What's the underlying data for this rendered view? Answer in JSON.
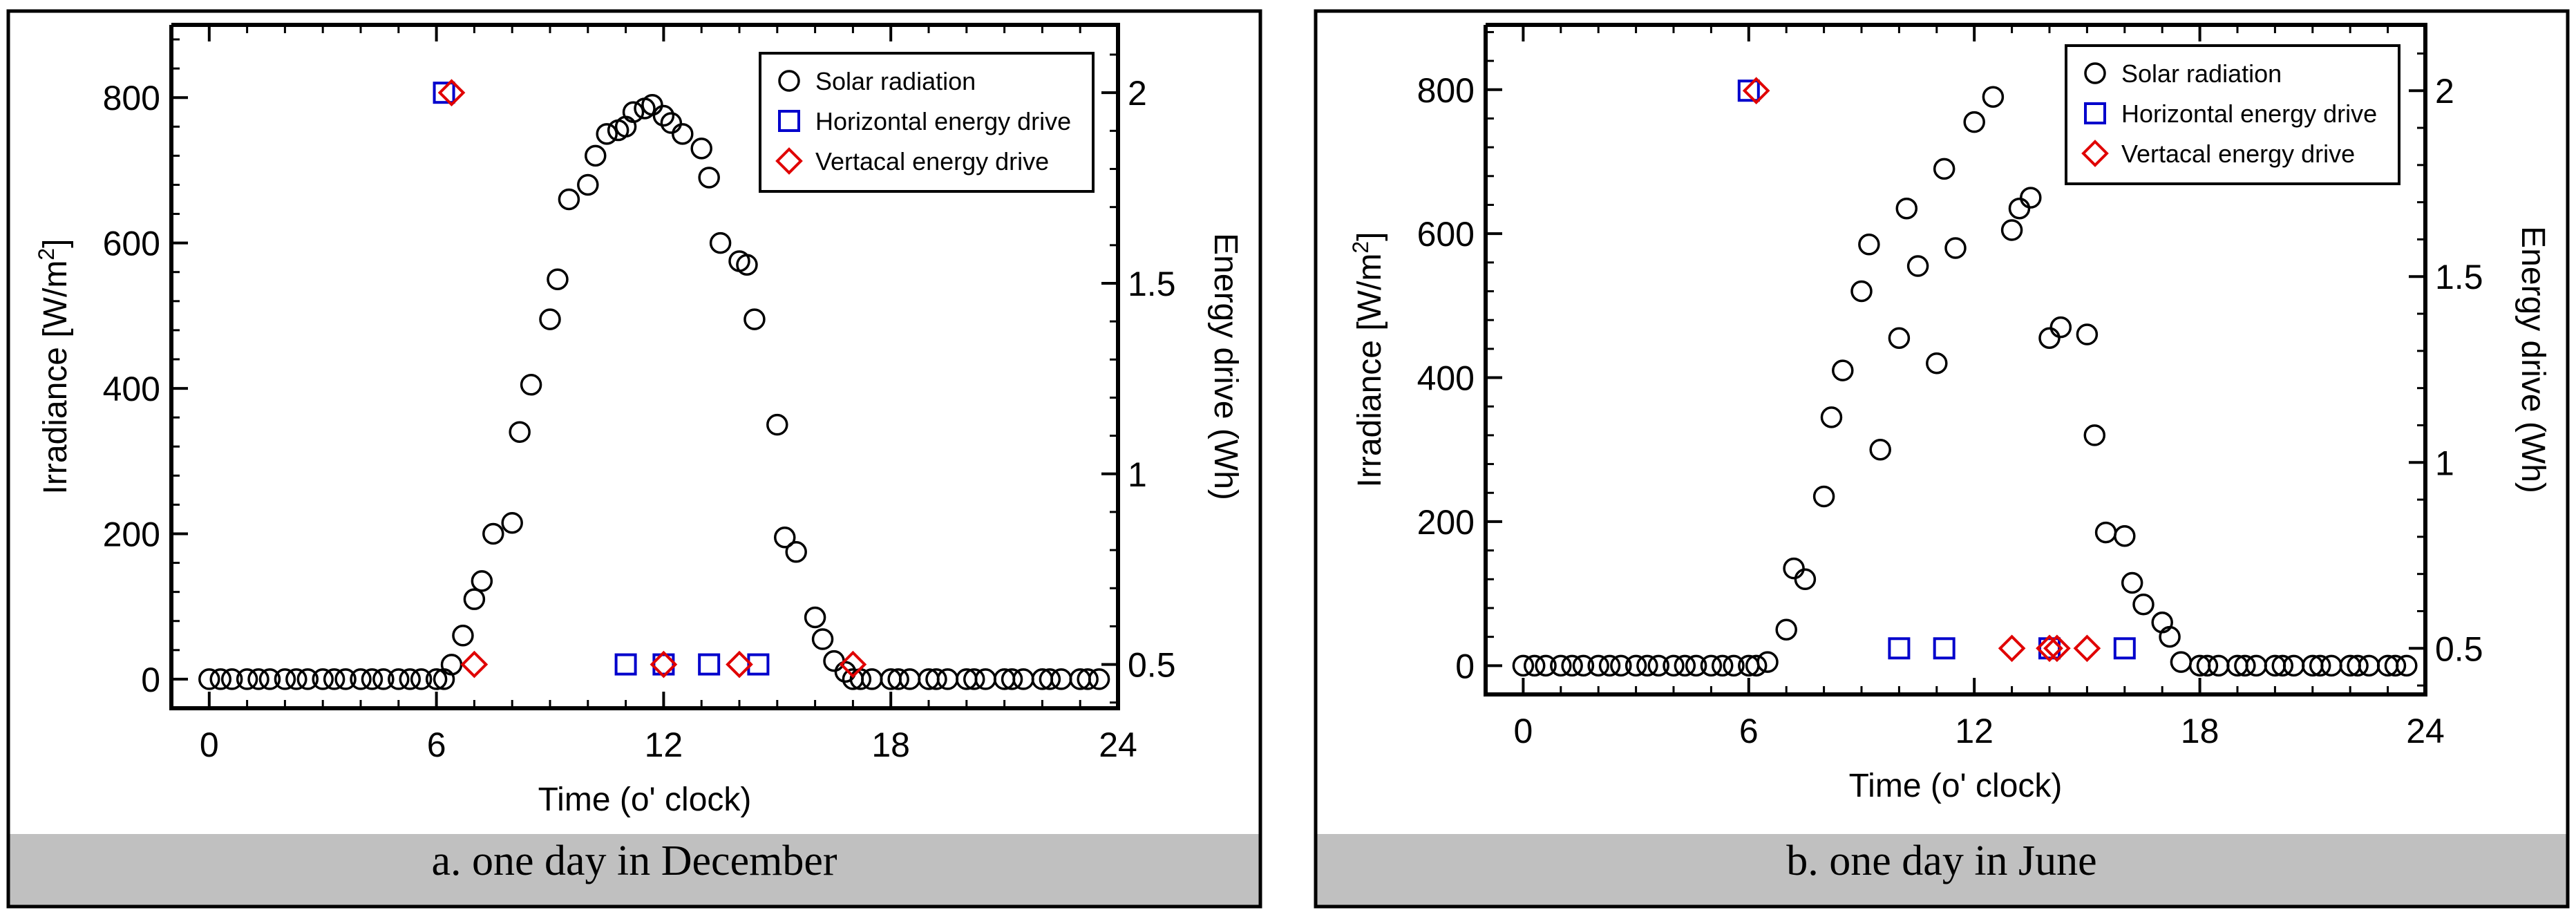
{
  "chart_data": [
    {
      "type": "scatter",
      "panel_caption": "a. one day in December",
      "xlabel": "Time (o' clock)",
      "ylabel": "Irradiance [W/m",
      "ylabel_sup": "2",
      "ylabel_end": "]",
      "y2label": "Energy drive (Wh)",
      "xlim": [
        -1,
        24
      ],
      "ylim": [
        -40,
        900
      ],
      "y2lim": [
        0.385,
        2.178
      ],
      "xticks": [
        0,
        6,
        12,
        18,
        24
      ],
      "xtick_labels": [
        "0",
        "6",
        "12",
        "18",
        "24"
      ],
      "yticks": [
        0,
        200,
        400,
        600,
        800
      ],
      "ytick_labels": [
        "0",
        "200",
        "400",
        "600",
        "800"
      ],
      "y2ticks": [
        0.5,
        1,
        1.5,
        2
      ],
      "y2tick_labels": [
        "0.5",
        "1",
        "1.5",
        "2"
      ],
      "legend_position": "top-right",
      "series": [
        {
          "name": "Solar radiation",
          "axis": "left",
          "x": [
            0,
            0.3,
            0.6,
            1,
            1.3,
            1.6,
            2,
            2.3,
            2.6,
            3,
            3.3,
            3.6,
            4,
            4.3,
            4.6,
            5,
            5.3,
            5.6,
            6,
            6.2,
            6.4,
            6.7,
            7,
            7.2,
            7.5,
            8,
            8.2,
            8.5,
            9,
            9.2,
            9.5,
            10,
            10.2,
            10.5,
            10.8,
            11,
            11.2,
            11.5,
            11.7,
            12,
            12.2,
            12.5,
            13,
            13.2,
            13.5,
            14,
            14.2,
            14.4,
            15,
            15.2,
            15.5,
            16,
            16.2,
            16.5,
            16.8,
            17,
            17.2,
            17.5,
            18,
            18.2,
            18.5,
            19,
            19.2,
            19.5,
            20,
            20.2,
            20.5,
            21,
            21.2,
            21.5,
            22,
            22.2,
            22.5,
            23,
            23.2,
            23.5
          ],
          "values": [
            0,
            0,
            0,
            0,
            0,
            0,
            0,
            0,
            0,
            0,
            0,
            0,
            0,
            0,
            0,
            0,
            0,
            0,
            0,
            0,
            20,
            60,
            110,
            135,
            200,
            215,
            340,
            405,
            495,
            550,
            660,
            680,
            720,
            750,
            755,
            760,
            780,
            785,
            790,
            775,
            765,
            750,
            730,
            690,
            600,
            575,
            570,
            495,
            350,
            195,
            175,
            85,
            55,
            25,
            10,
            0,
            0,
            0,
            0,
            0,
            0,
            0,
            0,
            0,
            0,
            0,
            0,
            0,
            0,
            0,
            0,
            0,
            0,
            0,
            0,
            0
          ]
        },
        {
          "name": "Horizontal energy drive",
          "axis": "right",
          "x": [
            6.2,
            11.0,
            12.0,
            13.2,
            14.5
          ],
          "values": [
            2.0,
            0.5,
            0.5,
            0.5,
            0.5
          ]
        },
        {
          "name": "Vertacal energy drive",
          "axis": "right",
          "x": [
            6.4,
            7.0,
            12.0,
            14.0,
            17.0
          ],
          "values": [
            2.0,
            0.5,
            0.5,
            0.5,
            0.5
          ]
        }
      ]
    },
    {
      "type": "scatter",
      "panel_caption": "b. one day in June",
      "xlabel": "Time (o' clock)",
      "ylabel": "Irradiance [W/m",
      "ylabel_sup": "2",
      "ylabel_end": "]",
      "y2label": "Energy drive (Wh)",
      "xlim": [
        -1,
        24
      ],
      "ylim": [
        -40,
        890
      ],
      "y2lim": [
        0.376,
        2.177
      ],
      "xticks": [
        0,
        6,
        12,
        18,
        24
      ],
      "xtick_labels": [
        "0",
        "6",
        "12",
        "18",
        "24"
      ],
      "yticks": [
        0,
        200,
        400,
        600,
        800
      ],
      "ytick_labels": [
        "0",
        "200",
        "400",
        "600",
        "800"
      ],
      "y2ticks": [
        0.5,
        1,
        1.5,
        2
      ],
      "y2tick_labels": [
        "0.5",
        "1",
        "1.5",
        "2"
      ],
      "legend_position": "top-right",
      "series": [
        {
          "name": "Solar radiation",
          "axis": "left",
          "x": [
            0,
            0.3,
            0.6,
            1,
            1.3,
            1.6,
            2,
            2.3,
            2.6,
            3,
            3.3,
            3.6,
            4,
            4.3,
            4.6,
            5,
            5.3,
            5.6,
            6,
            6.2,
            6.5,
            7,
            7.2,
            7.5,
            8,
            8.2,
            8.5,
            9,
            9.2,
            9.5,
            10,
            10.2,
            10.5,
            11,
            11.2,
            11.5,
            12,
            12.5,
            13,
            13.2,
            13.5,
            14,
            14.3,
            15,
            15.2,
            15.5,
            16,
            16.2,
            16.5,
            17,
            17.2,
            17.5,
            18,
            18.2,
            18.5,
            19,
            19.2,
            19.5,
            20,
            20.2,
            20.5,
            21,
            21.2,
            21.5,
            22,
            22.2,
            22.5,
            23,
            23.2,
            23.5
          ],
          "values": [
            0,
            0,
            0,
            0,
            0,
            0,
            0,
            0,
            0,
            0,
            0,
            0,
            0,
            0,
            0,
            0,
            0,
            0,
            0,
            0,
            5,
            50,
            135,
            120,
            235,
            345,
            410,
            520,
            585,
            300,
            455,
            635,
            555,
            420,
            690,
            580,
            755,
            790,
            605,
            635,
            650,
            455,
            470,
            460,
            320,
            185,
            180,
            115,
            85,
            60,
            40,
            5,
            0,
            0,
            0,
            0,
            0,
            0,
            0,
            0,
            0,
            0,
            0,
            0,
            0,
            0,
            0,
            0,
            0,
            0
          ]
        },
        {
          "name": "Horizontal energy drive",
          "axis": "right",
          "x": [
            6.0,
            10.0,
            11.2,
            14.0,
            16.0
          ],
          "values": [
            2.0,
            0.5,
            0.5,
            0.5,
            0.5
          ]
        },
        {
          "name": "Vertacal energy drive",
          "axis": "right",
          "x": [
            6.2,
            13.0,
            14.0,
            14.2,
            15.0
          ],
          "values": [
            2.0,
            0.5,
            0.5,
            0.5,
            0.5
          ]
        }
      ]
    }
  ]
}
